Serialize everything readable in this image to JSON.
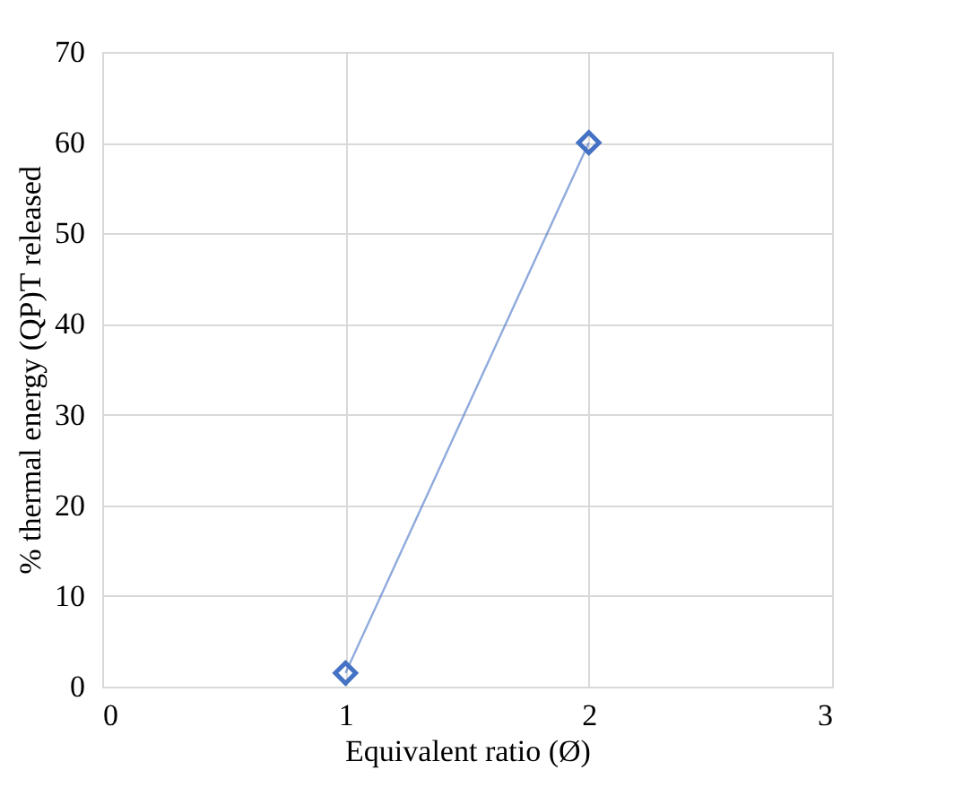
{
  "chart_data": {
    "type": "line",
    "xlabel": "Equivalent ratio (Ø)",
    "ylabel": "% thermal energy (QP)T released",
    "x": [
      1,
      2
    ],
    "series": [
      {
        "color": "#4472c4",
        "values": [
          1.5,
          60
        ]
      }
    ],
    "xlim": [
      0,
      3
    ],
    "xticks": [
      0,
      1,
      2,
      3
    ],
    "ylim": [
      0,
      70
    ],
    "yticks": [
      0,
      10,
      20,
      30,
      40,
      50,
      60,
      70
    ],
    "grid": true,
    "marker": "diamond",
    "line_style": "solid"
  }
}
